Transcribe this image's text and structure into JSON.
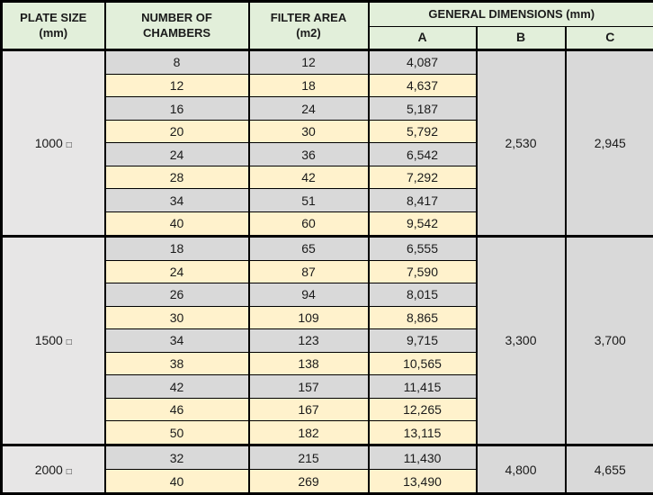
{
  "table": {
    "colors": {
      "header_bg": "#e2efda",
      "row_gray": "#d9d9d9",
      "row_cream": "#fff2cc",
      "plate_bg": "#e7e6e6",
      "merged_bg": "#d9d9d9",
      "border_color": "#000000",
      "text_color": "#1a1a1a"
    },
    "columns": {
      "plate_size": "PLATE SIZE\n(mm)",
      "chambers": "NUMBER OF CHAMBERS",
      "filter_area": "FILTER AREA\n(m2)",
      "general_dimensions": "GENERAL DIMENSIONS (mm)",
      "sub_a": "A",
      "sub_b": "B",
      "sub_c": "C"
    },
    "groups": [
      {
        "plate_size": "1000",
        "plate_suffix": "□",
        "b": "2,530",
        "c": "2,945",
        "rows": [
          {
            "chambers": "8",
            "filter_area": "12",
            "a": "4,087",
            "shade": "gray"
          },
          {
            "chambers": "12",
            "filter_area": "18",
            "a": "4,637",
            "shade": "cream"
          },
          {
            "chambers": "16",
            "filter_area": "24",
            "a": "5,187",
            "shade": "gray"
          },
          {
            "chambers": "20",
            "filter_area": "30",
            "a": "5,792",
            "shade": "cream"
          },
          {
            "chambers": "24",
            "filter_area": "36",
            "a": "6,542",
            "shade": "gray"
          },
          {
            "chambers": "28",
            "filter_area": "42",
            "a": "7,292",
            "shade": "cream"
          },
          {
            "chambers": "34",
            "filter_area": "51",
            "a": "8,417",
            "shade": "gray"
          },
          {
            "chambers": "40",
            "filter_area": "60",
            "a": "9,542",
            "shade": "cream"
          }
        ]
      },
      {
        "plate_size": "1500",
        "plate_suffix": "□",
        "b": "3,300",
        "c": "3,700",
        "rows": [
          {
            "chambers": "18",
            "filter_area": "65",
            "a": "6,555",
            "shade": "gray"
          },
          {
            "chambers": "24",
            "filter_area": "87",
            "a": "7,590",
            "shade": "cream"
          },
          {
            "chambers": "26",
            "filter_area": "94",
            "a": "8,015",
            "shade": "gray"
          },
          {
            "chambers": "30",
            "filter_area": "109",
            "a": "8,865",
            "shade": "cream"
          },
          {
            "chambers": "34",
            "filter_area": "123",
            "a": "9,715",
            "shade": "gray"
          },
          {
            "chambers": "38",
            "filter_area": "138",
            "a": "10,565",
            "shade": "cream"
          },
          {
            "chambers": "42",
            "filter_area": "157",
            "a": "11,415",
            "shade": "gray"
          },
          {
            "chambers": "46",
            "filter_area": "167",
            "a": "12,265",
            "shade": "cream"
          },
          {
            "chambers": "50",
            "filter_area": "182",
            "a": "13,115",
            "shade": "cream"
          }
        ]
      },
      {
        "plate_size": "2000",
        "plate_suffix": "□",
        "b": "4,800",
        "c": "4,655",
        "rows": [
          {
            "chambers": "32",
            "filter_area": "215",
            "a": "11,430",
            "shade": "gray"
          },
          {
            "chambers": "40",
            "filter_area": "269",
            "a": "13,490",
            "shade": "cream"
          }
        ]
      }
    ]
  }
}
